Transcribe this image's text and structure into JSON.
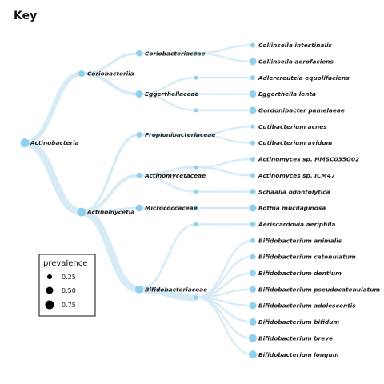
{
  "title": "Key",
  "tree": {
    "name": "Actinobacteria",
    "children": [
      {
        "name": "Coriobacteriia",
        "children": [
          {
            "name": "Coriobacteriaceae",
            "children": [
              {
                "name": "Collinsella intestinalis"
              },
              {
                "name": "Collinsella aerofaciens"
              }
            ]
          },
          {
            "name": "Eggerthellaceae",
            "children": [
              {
                "name": "Adlercreutzia equolifaciens"
              },
              {
                "name": "Eggerthella lenta"
              },
              {
                "name": "Gordonibacter pamelaeae"
              }
            ]
          }
        ]
      },
      {
        "name": "Actinomycetia",
        "children": [
          {
            "name": "Propionibacteriaceae",
            "children": [
              {
                "name": "Cutibacterium acnes"
              },
              {
                "name": "Cutibacterium avidum"
              }
            ]
          },
          {
            "name": "Actinomycetaceae",
            "children": [
              {
                "name": "Actinomyces sp. HMSC035G02"
              },
              {
                "name": "Actinomyces sp. ICM47"
              },
              {
                "name": "Schaalia odontolytica"
              }
            ]
          },
          {
            "name": "Micrococcaceae",
            "children": [
              {
                "name": "Rothia mucilaginosa"
              }
            ]
          },
          {
            "name": "Bifidobacteriaceae",
            "children": [
              {
                "name": "Aeriscardovia aeriphila"
              },
              {
                "name": "Bifidobacterium animalis"
              },
              {
                "name": "Bifidobacterium catenulatum"
              },
              {
                "name": "Bifidobacterium dentium"
              },
              {
                "name": "Bifidobacterium pseudocatenulatum"
              },
              {
                "name": "Bifidobacterium adolescentis"
              },
              {
                "name": "Bifidobacterium bifidum"
              },
              {
                "name": "Bifidobacterium breve"
              },
              {
                "name": "Bifidobacterium longum"
              }
            ]
          }
        ]
      }
    ]
  },
  "legend": {
    "title": "prevalence",
    "items": [
      {
        "label": "0.25",
        "value": 0.25
      },
      {
        "label": "0.50",
        "value": 0.5
      },
      {
        "label": "0.75",
        "value": 0.75
      }
    ]
  },
  "colors": {
    "node": "#8fd0ec",
    "edge": "#d6ebf6",
    "text": "#222222"
  }
}
